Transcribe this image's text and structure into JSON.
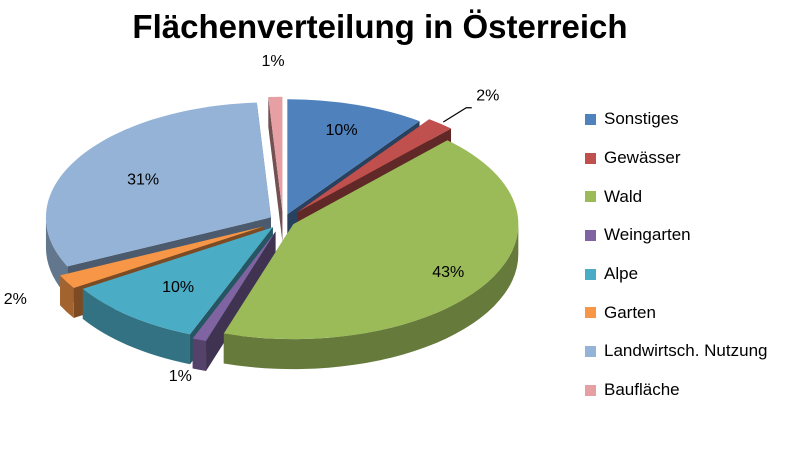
{
  "chart_data": {
    "type": "pie",
    "title": "Flächenverteilung in Österreich",
    "categories": [
      "Sonstiges",
      "Gewässer",
      "Wald",
      "Weingarten",
      "Alpe",
      "Garten",
      "Landwirtsch. Nutzung",
      "Baufläche"
    ],
    "values": [
      10,
      2,
      43,
      1,
      10,
      2,
      31,
      1
    ],
    "data_labels": [
      "10%",
      "2%",
      "43%",
      "1%",
      "10%",
      "2%",
      "31%",
      "1%"
    ],
    "colors": [
      "#4F81BD",
      "#C0504D",
      "#9BBB59",
      "#8064A2",
      "#4BACC6",
      "#F79646",
      "#95B3D7",
      "#E6A0A4"
    ],
    "legend_position": "right",
    "exploded": true,
    "three_d": true
  }
}
